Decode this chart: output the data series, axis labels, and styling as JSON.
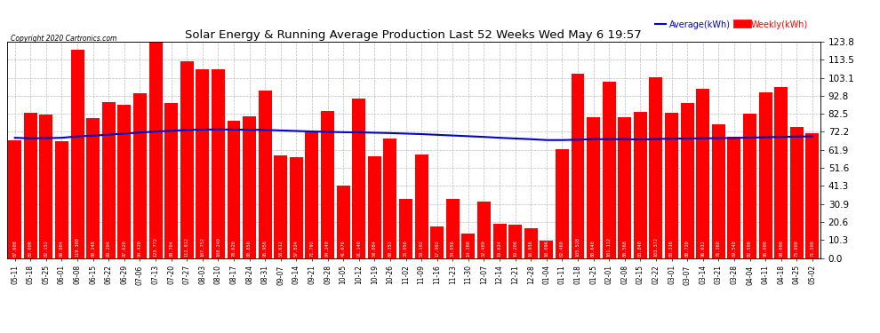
{
  "title": "Solar Energy & Running Average Production Last 52 Weeks Wed May 6 19:57",
  "copyright": "Copyright 2020 Cartronics.com",
  "legend_avg": "Average(kWh)",
  "legend_weekly": "Weekly(kWh)",
  "ylabel_right_ticks": [
    0.0,
    10.3,
    20.6,
    30.9,
    41.3,
    51.6,
    61.9,
    72.2,
    82.5,
    92.8,
    103.1,
    113.5,
    123.8
  ],
  "bar_color": "#FF0000",
  "avg_line_color": "#0000CD",
  "background_color": "#FFFFFF",
  "grid_color": "#BBBBBB",
  "categories": [
    "05-11",
    "05-18",
    "05-25",
    "06-01",
    "06-08",
    "06-15",
    "06-22",
    "06-29",
    "07-06",
    "07-13",
    "07-20",
    "07-27",
    "08-03",
    "08-10",
    "08-17",
    "08-24",
    "08-31",
    "09-07",
    "09-14",
    "09-21",
    "09-28",
    "10-05",
    "10-12",
    "10-19",
    "10-26",
    "11-02",
    "11-09",
    "11-16",
    "11-23",
    "11-30",
    "12-07",
    "12-14",
    "12-21",
    "12-28",
    "01-04",
    "01-11",
    "01-18",
    "01-25",
    "02-01",
    "02-08",
    "02-15",
    "02-22",
    "03-01",
    "03-07",
    "03-14",
    "03-21",
    "03-28",
    "04-04",
    "04-11",
    "04-18",
    "04-25",
    "05-02"
  ],
  "weekly_values": [
    67.608,
    83.0,
    82.152,
    66.804,
    119.3,
    80.248,
    89.204,
    87.62,
    94.42,
    123.772,
    88.704,
    112.812,
    107.752,
    108.24,
    78.62,
    80.856,
    95.956,
    58.612,
    57.824,
    71.792,
    84.24,
    41.676,
    91.14,
    58.084,
    68.352,
    33.956,
    59.192,
    17.992,
    34.056,
    14.28,
    32.48,
    19.624,
    19.208,
    16.936,
    10.096,
    62.46,
    105.528,
    80.64,
    101.112,
    80.568,
    83.84,
    103.372,
    83.316,
    88.72,
    96.632,
    76.36,
    69.548,
    82.5,
    95.0,
    98.0,
    75.0,
    71.5
  ],
  "avg_values": [
    68.8,
    68.5,
    68.6,
    68.8,
    69.6,
    70.0,
    70.6,
    71.2,
    71.8,
    72.4,
    72.8,
    73.3,
    73.5,
    73.6,
    73.5,
    73.4,
    73.3,
    73.0,
    72.7,
    72.4,
    72.2,
    72.0,
    71.9,
    71.7,
    71.5,
    71.2,
    70.9,
    70.5,
    70.1,
    69.7,
    69.3,
    68.8,
    68.4,
    68.0,
    67.5,
    67.5,
    67.7,
    68.0,
    68.0,
    68.0,
    67.8,
    68.1,
    68.3,
    68.4,
    68.5,
    68.6,
    68.7,
    68.9,
    69.1,
    69.3,
    69.5,
    69.6
  ]
}
